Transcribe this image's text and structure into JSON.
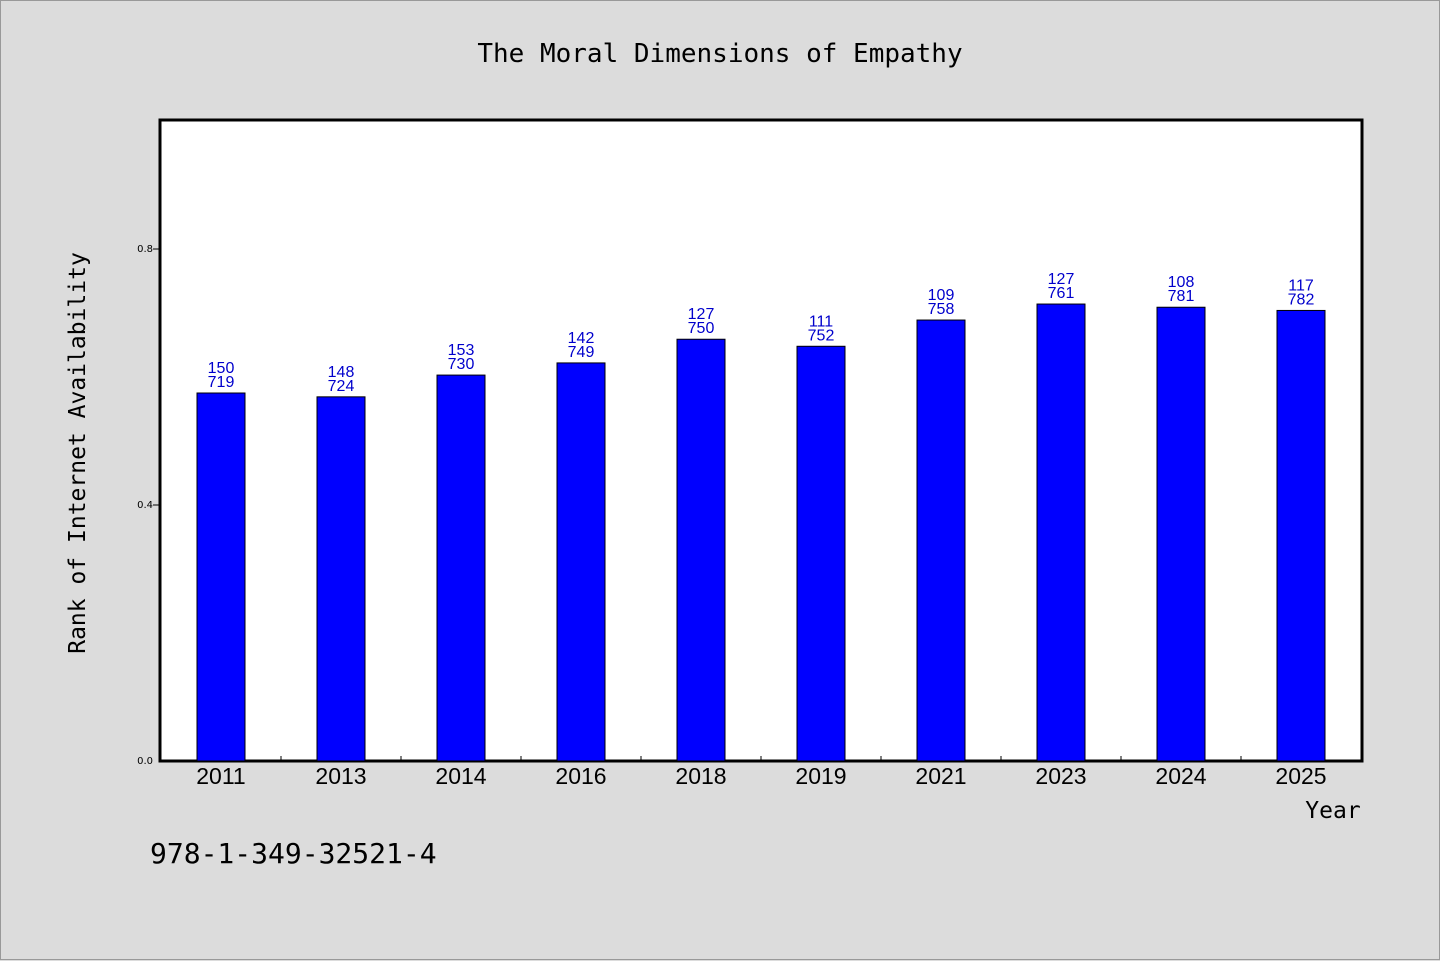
{
  "chart_data": {
    "type": "bar",
    "title": "The Moral Dimensions of Empathy",
    "xlabel": "Year",
    "ylabel": "Rank of Internet Availability",
    "ylim": [
      0,
      1.0
    ],
    "yticks": [
      "0.0",
      "0.4",
      "0.8"
    ],
    "ytick_values": [
      0.0,
      0.4,
      0.8
    ],
    "grid": false,
    "categories": [
      "2011",
      "2013",
      "2014",
      "2016",
      "2018",
      "2019",
      "2021",
      "2023",
      "2024",
      "2025"
    ],
    "values": [
      0.575,
      0.569,
      0.603,
      0.622,
      0.659,
      0.648,
      0.689,
      0.714,
      0.709,
      0.704
    ],
    "label_top": [
      "150",
      "148",
      "153",
      "142",
      "127",
      "111",
      "109",
      "127",
      "108",
      "117"
    ],
    "label_bottom": [
      "719",
      "724",
      "730",
      "749",
      "750",
      "752",
      "758",
      "761",
      "781",
      "782"
    ],
    "bar_color": "#0000ff",
    "label_color": "#0000cc"
  },
  "footer_code": "978-1-349-32521-4"
}
